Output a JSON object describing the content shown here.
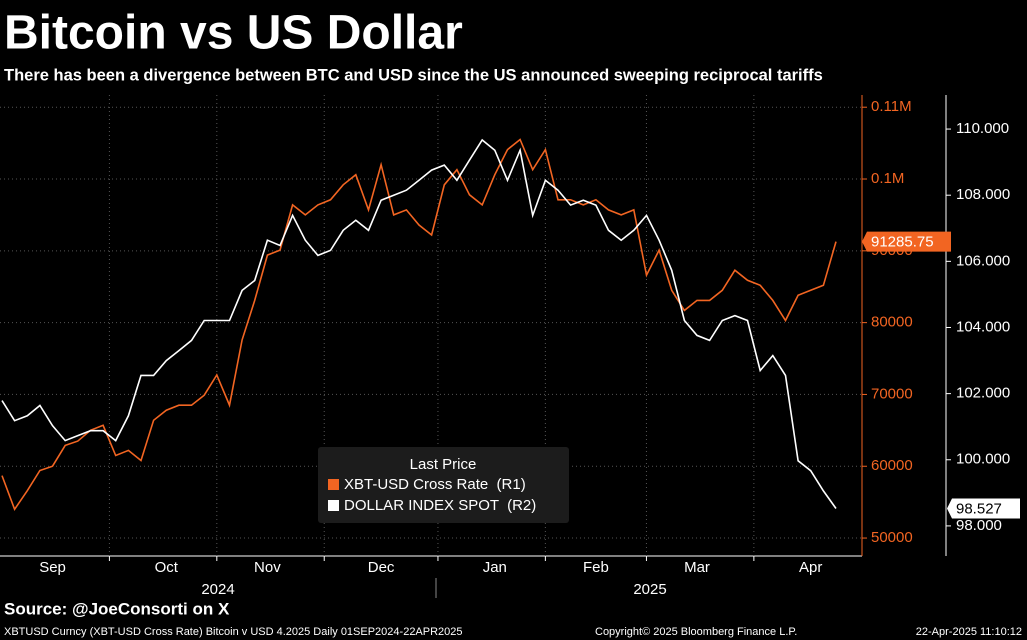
{
  "chart_data": {
    "type": "line",
    "title": "Bitcoin vs US Dollar",
    "subtitle": "There has been a divergence between BTC and USD since the US announced sweeping reciprocal tariffs",
    "categories": [
      null,
      null,
      null,
      null,
      "Sep",
      null,
      null,
      null,
      null,
      null,
      null,
      null,
      null,
      "Oct",
      null,
      null,
      null,
      null,
      null,
      null,
      null,
      "Nov",
      null,
      null,
      null,
      null,
      null,
      null,
      null,
      null,
      "Dec",
      null,
      null,
      null,
      null,
      null,
      null,
      null,
      null,
      "Jan",
      null,
      null,
      null,
      null,
      null,
      null,
      null,
      "Feb",
      null,
      null,
      null,
      null,
      null,
      null,
      null,
      "Mar",
      null,
      null,
      null,
      null,
      null,
      null,
      null,
      null,
      "Apr",
      null,
      null
    ],
    "year_labels": [
      "2024",
      "2025"
    ],
    "series": [
      {
        "name": "XBT-USD Cross Rate  (R1)",
        "color": "#f26522",
        "axis": "y",
        "values": [
          58700,
          54000,
          56600,
          59400,
          60000,
          62900,
          63500,
          65000,
          65700,
          61500,
          62200,
          60800,
          66400,
          67800,
          68500,
          68500,
          69900,
          72700,
          68500,
          77600,
          83100,
          89400,
          90100,
          96400,
          95000,
          96400,
          97100,
          99200,
          100600,
          95700,
          102000,
          95000,
          95700,
          93600,
          92200,
          99200,
          101300,
          97800,
          96400,
          100600,
          104100,
          105500,
          101300,
          104100,
          97100,
          97100,
          96400,
          97100,
          95700,
          95000,
          95700,
          86600,
          90100,
          84500,
          81700,
          83100,
          83100,
          84500,
          87300,
          85900,
          85200,
          83100,
          80300,
          83800,
          84500,
          85200,
          91285.75
        ]
      },
      {
        "name": "DOLLAR INDEX SPOT  (R2)",
        "color": "#ffffff",
        "axis": "y2",
        "values": [
          101.79,
          101.18,
          101.33,
          101.64,
          101.03,
          100.58,
          100.73,
          100.88,
          100.88,
          100.58,
          101.33,
          102.55,
          102.55,
          103.0,
          103.3,
          103.61,
          104.21,
          104.21,
          104.21,
          105.12,
          105.42,
          106.64,
          106.48,
          107.39,
          106.64,
          106.18,
          106.33,
          106.94,
          107.24,
          106.94,
          107.85,
          108.0,
          108.15,
          108.45,
          108.76,
          108.91,
          108.45,
          109.06,
          109.67,
          109.36,
          108.45,
          109.36,
          107.39,
          108.45,
          108.15,
          107.7,
          107.85,
          107.7,
          106.94,
          106.64,
          106.94,
          107.39,
          106.64,
          105.73,
          104.21,
          103.76,
          103.61,
          104.21,
          104.36,
          104.21,
          102.7,
          103.15,
          102.55,
          99.97,
          99.67,
          99.06,
          98.527
        ]
      }
    ],
    "ylim": [
      47500,
      111700
    ],
    "yticks": [
      {
        "value": 110000,
        "label": "0.11M"
      },
      {
        "value": 100000,
        "label": "0.1M"
      },
      90000,
      80000,
      70000,
      60000,
      50000
    ],
    "y2lim": [
      97.09,
      111.03
    ],
    "y2ticks": [
      {
        "value": 110,
        "label": "110.000"
      },
      {
        "value": 108,
        "label": "108.000"
      },
      {
        "value": 106,
        "label": "106.000"
      },
      {
        "value": 104,
        "label": "104.000"
      },
      {
        "value": 102,
        "label": "102.000"
      },
      {
        "value": 100,
        "label": "100.000"
      },
      {
        "value": 98,
        "label": "98.000"
      }
    ],
    "grid": true,
    "legend_title": "Last Price",
    "legend_position": "bottom-center",
    "source": "Source: @JoeConsorti on X",
    "footer": [
      "XBTUSD Curncy (XBT-USD Cross Rate) Bitcoin v USD 4.2025  Daily 01SEP2024-22APR2025",
      "Copyright© 2025 Bloomberg Finance L.P.",
      "22-Apr-2025 11:10:12"
    ]
  }
}
